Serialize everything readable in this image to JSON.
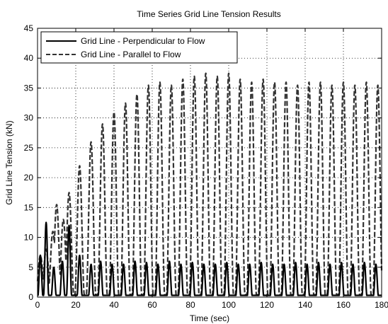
{
  "chart_data": {
    "type": "line",
    "title": "Time Series Grid Line Tension Results",
    "xlabel": "Time (sec)",
    "ylabel": "Grid Line Tension (kN)",
    "xlim": [
      0,
      180
    ],
    "ylim": [
      0,
      45
    ],
    "grid": true,
    "legend_position": "top-left",
    "xticks": [
      "0",
      "20",
      "40",
      "60",
      "80",
      "100",
      "120",
      "140",
      "160",
      "180"
    ],
    "yticks": [
      "0",
      "5",
      "10",
      "15",
      "20",
      "25",
      "30",
      "35",
      "40",
      "45"
    ],
    "series": [
      {
        "name": "Grid Line - Perpendicular to Flow",
        "style": "solid",
        "color": "#000000",
        "peaks": [
          [
            1.5,
            7
          ],
          [
            4.5,
            12.5
          ],
          [
            8.5,
            5
          ],
          [
            13,
            6
          ],
          [
            16.5,
            12
          ],
          [
            22,
            7
          ],
          [
            28,
            5.5
          ],
          [
            33,
            6
          ],
          [
            39,
            5.5
          ],
          [
            45,
            5.5
          ],
          [
            51,
            6
          ],
          [
            57,
            5.8
          ],
          [
            63,
            5.5
          ],
          [
            69,
            6
          ],
          [
            75,
            5.5
          ],
          [
            81,
            5.8
          ],
          [
            87,
            5.5
          ],
          [
            93,
            5.5
          ],
          [
            99,
            5.8
          ],
          [
            105,
            5.5
          ],
          [
            111,
            5.5
          ],
          [
            117,
            5.8
          ],
          [
            123,
            5.5
          ],
          [
            129,
            5.5
          ],
          [
            135,
            5.8
          ],
          [
            141,
            5.5
          ],
          [
            147,
            5.8
          ],
          [
            153,
            5.5
          ],
          [
            159,
            5.8
          ],
          [
            165,
            5.5
          ],
          [
            171,
            5.8
          ],
          [
            177,
            5.5
          ]
        ]
      },
      {
        "name": "Grid Line - Parallel to Flow",
        "style": "dashed",
        "color": "#333333",
        "peaks": [
          [
            1.5,
            7
          ],
          [
            4.5,
            8
          ],
          [
            8,
            11
          ],
          [
            10,
            15.5
          ],
          [
            13.5,
            13
          ],
          [
            16.5,
            17.5
          ],
          [
            22,
            22
          ],
          [
            28,
            26
          ],
          [
            34,
            29
          ],
          [
            40,
            31
          ],
          [
            46,
            32.5
          ],
          [
            52,
            34
          ],
          [
            58,
            35.5
          ],
          [
            64,
            36
          ],
          [
            70,
            35.5
          ],
          [
            76,
            36.5
          ],
          [
            82,
            37
          ],
          [
            88,
            37.5
          ],
          [
            94,
            37
          ],
          [
            100,
            37.5
          ],
          [
            106,
            36.5
          ],
          [
            112,
            36
          ],
          [
            118,
            36.5
          ],
          [
            124,
            36
          ],
          [
            130,
            36
          ],
          [
            136,
            35.5
          ],
          [
            142,
            36
          ],
          [
            148,
            36
          ],
          [
            154,
            35.5
          ],
          [
            160,
            36
          ],
          [
            166,
            35.5
          ],
          [
            172,
            36
          ],
          [
            178,
            35.5
          ]
        ]
      }
    ]
  }
}
